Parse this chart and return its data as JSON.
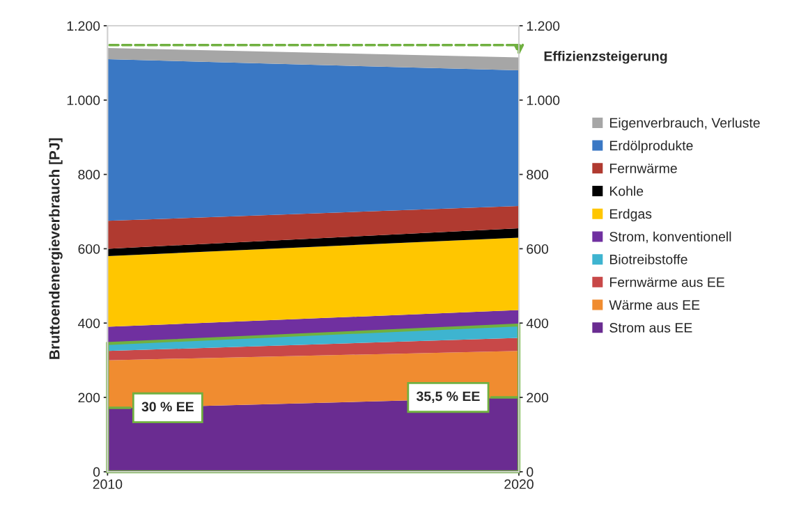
{
  "chart_data": {
    "type": "area",
    "stacked": true,
    "ylabel": "Bruttoendenergieverbrauch [PJ]",
    "x": [
      2010,
      2020
    ],
    "xlim": [
      2010,
      2020
    ],
    "xticks": [
      2010,
      2020
    ],
    "ylim": [
      0,
      1200
    ],
    "yticks": [
      0,
      200,
      400,
      600,
      800,
      {
        "value": 1000,
        "label": "1.000"
      },
      {
        "value": 1200,
        "label": "1.200"
      }
    ],
    "y2lim": [
      0,
      1200
    ],
    "y2ticks": [
      0,
      200,
      400,
      600,
      800,
      {
        "value": 1000,
        "label": "1.000"
      },
      {
        "value": 1200,
        "label": "1.200"
      }
    ],
    "grid": false,
    "legend": "right",
    "series": [
      {
        "name": "Strom aus EE",
        "color": "#6a2c91",
        "values": [
          170,
          200
        ]
      },
      {
        "name": "Wärme aus EE",
        "color": "#f08c30",
        "values": [
          130,
          125
        ]
      },
      {
        "name": "Fernwärme aus EE",
        "color": "#c84848",
        "values": [
          25,
          35
        ]
      },
      {
        "name": "Biotreibstoffe",
        "color": "#3eb4d0",
        "values": [
          20,
          35
        ]
      },
      {
        "name": "Strom, konventionell",
        "color": "#7030a0",
        "values": [
          45,
          40
        ]
      },
      {
        "name": "Erdgas",
        "color": "#ffc600",
        "values": [
          190,
          195
        ]
      },
      {
        "name": "Kohle",
        "color": "#000000",
        "values": [
          20,
          25
        ]
      },
      {
        "name": "Fernwärme",
        "color": "#b03a30",
        "values": [
          75,
          60
        ]
      },
      {
        "name": "Erdölprodukte",
        "color": "#3a78c4",
        "values": [
          435,
          365
        ]
      },
      {
        "name": "Eigenverbrauch, Verluste",
        "color": "#a6a6a6",
        "values": [
          30,
          35
        ]
      }
    ],
    "annotations": [
      "Effizienzsteigerung",
      {
        "text": "30 % EE",
        "x": 2010,
        "y": 172
      },
      {
        "text": "35,5 % EE",
        "x": 2020,
        "y": 200
      }
    ]
  }
}
